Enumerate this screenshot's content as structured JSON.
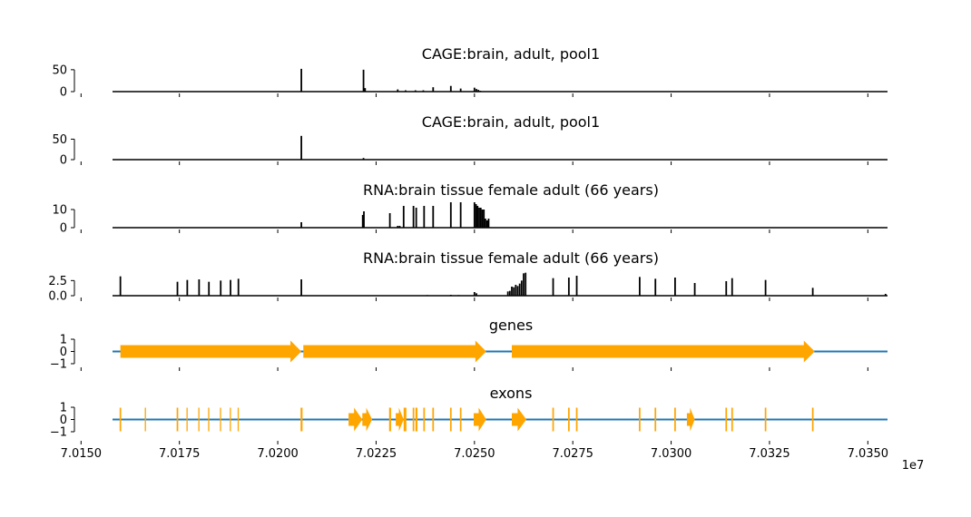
{
  "chart_data": {
    "type": "genome-tracks",
    "x_tick_labels": [
      "7.0150",
      "7.0175",
      "7.0200",
      "7.0225",
      "7.0250",
      "7.0275",
      "7.0300",
      "7.0325",
      "7.0350"
    ],
    "x_ticks": [
      70150000,
      70175000,
      70200000,
      70225000,
      70250000,
      70275000,
      70300000,
      70325000,
      70350000
    ],
    "x_offset_label": "1e7",
    "xlim": [
      70158000,
      70355000
    ],
    "tracks": [
      {
        "kind": "bar",
        "title": "CAGE:brain, adult, pool1",
        "ylim": [
          0,
          58
        ],
        "y_ticks": [
          0,
          50
        ],
        "y_tick_labels": [
          "0",
          "50"
        ],
        "peaks": [
          [
            70206000,
            52
          ],
          [
            70221800,
            50
          ],
          [
            70222200,
            8
          ],
          [
            70230500,
            5
          ],
          [
            70232500,
            3
          ],
          [
            70235000,
            3
          ],
          [
            70237000,
            3
          ],
          [
            70239500,
            10
          ],
          [
            70244000,
            13
          ],
          [
            70246500,
            7
          ],
          [
            70250000,
            9
          ],
          [
            70250500,
            6
          ],
          [
            70251000,
            4
          ],
          [
            70251500,
            2
          ]
        ]
      },
      {
        "kind": "bar",
        "title": "CAGE:brain, adult, pool1",
        "ylim": [
          0,
          62
        ],
        "y_ticks": [
          0,
          50
        ],
        "y_tick_labels": [
          "0",
          "50"
        ],
        "peaks": [
          [
            70206000,
            58
          ],
          [
            70221800,
            4
          ],
          [
            70193000,
            1
          ]
        ]
      },
      {
        "kind": "bar",
        "title": "RNA:brain tissue female adult (66 years)",
        "ylim": [
          0,
          14
        ],
        "y_ticks": [
          0,
          10
        ],
        "y_tick_labels": [
          "0",
          "10"
        ],
        "peaks": [
          [
            70206000,
            3
          ],
          [
            70221600,
            7
          ],
          [
            70221900,
            9
          ],
          [
            70228500,
            8
          ],
          [
            70230500,
            1
          ],
          [
            70231000,
            1
          ],
          [
            70232000,
            12
          ],
          [
            70234500,
            12
          ],
          [
            70235200,
            11
          ],
          [
            70237200,
            12
          ],
          [
            70239500,
            12
          ],
          [
            70244000,
            14
          ],
          [
            70246500,
            14
          ],
          [
            70250000,
            14
          ],
          [
            70250400,
            13
          ],
          [
            70250800,
            12
          ],
          [
            70251200,
            11
          ],
          [
            70251600,
            11
          ],
          [
            70252000,
            10
          ],
          [
            70252400,
            10
          ],
          [
            70252800,
            5
          ],
          [
            70253200,
            4
          ],
          [
            70253600,
            5
          ]
        ]
      },
      {
        "kind": "bar",
        "title": "RNA:brain tissue female adult (66 years)",
        "ylim": [
          0,
          4.2
        ],
        "y_ticks": [
          0,
          2.5
        ],
        "y_tick_labels": [
          "0.0",
          "2.5"
        ],
        "peaks": [
          [
            70160000,
            3.2
          ],
          [
            70174500,
            2.3
          ],
          [
            70177000,
            2.6
          ],
          [
            70180000,
            2.7
          ],
          [
            70182500,
            2.3
          ],
          [
            70185500,
            2.5
          ],
          [
            70188000,
            2.6
          ],
          [
            70190000,
            2.8
          ],
          [
            70206000,
            2.7
          ],
          [
            70238000,
            0.1
          ],
          [
            70244000,
            0.15
          ],
          [
            70246000,
            0.1
          ],
          [
            70250000,
            0.6
          ],
          [
            70250500,
            0.4
          ],
          [
            70258500,
            0.7
          ],
          [
            70259000,
            0.8
          ],
          [
            70259500,
            1.5
          ],
          [
            70260000,
            1.4
          ],
          [
            70260500,
            1.8
          ],
          [
            70261000,
            1.6
          ],
          [
            70261500,
            2.0
          ],
          [
            70262000,
            2.5
          ],
          [
            70262500,
            3.7
          ],
          [
            70263000,
            3.8
          ],
          [
            70270000,
            2.9
          ],
          [
            70274000,
            3.0
          ],
          [
            70276000,
            3.3
          ],
          [
            70292000,
            3.1
          ],
          [
            70296000,
            2.8
          ],
          [
            70301000,
            3.0
          ],
          [
            70306000,
            2.1
          ],
          [
            70314000,
            2.4
          ],
          [
            70315500,
            2.9
          ],
          [
            70324000,
            2.6
          ],
          [
            70336000,
            1.3
          ],
          [
            70354500,
            0.3
          ]
        ]
      },
      {
        "kind": "genes",
        "title": "genes",
        "ylim": [
          -1.15,
          1.15
        ],
        "y_ticks": [
          -1,
          0,
          1
        ],
        "y_tick_labels": [
          "−1",
          "0",
          "1"
        ],
        "genes": [
          [
            70160000,
            70206000
          ],
          [
            70206500,
            70253000
          ],
          [
            70259500,
            70336500
          ]
        ]
      },
      {
        "kind": "exons",
        "title": "exons",
        "ylim": [
          -1.15,
          1.15
        ],
        "y_ticks": [
          -1,
          0,
          1
        ],
        "y_tick_labels": [
          "−1",
          "0",
          "1"
        ],
        "exons": [
          [
            70159800,
            70160200
          ],
          [
            70166200,
            70166500
          ],
          [
            70174300,
            70174700
          ],
          [
            70176800,
            70177100
          ],
          [
            70179800,
            70180100
          ],
          [
            70182300,
            70182600
          ],
          [
            70185300,
            70185600
          ],
          [
            70187800,
            70188100
          ],
          [
            70189800,
            70190100
          ],
          [
            70205800,
            70206300
          ],
          [
            70218000,
            70221500
          ],
          [
            70221500,
            70224000
          ],
          [
            70228300,
            70228800
          ],
          [
            70230000,
            70232000
          ],
          [
            70232000,
            70232700
          ],
          [
            70234300,
            70234700
          ],
          [
            70235000,
            70235500
          ],
          [
            70237000,
            70237400
          ],
          [
            70239300,
            70239700
          ],
          [
            70243800,
            70244200
          ],
          [
            70246300,
            70246700
          ],
          [
            70249800,
            70253000
          ],
          [
            70259500,
            70263200
          ],
          [
            70269800,
            70270200
          ],
          [
            70273800,
            70274200
          ],
          [
            70275800,
            70276200
          ],
          [
            70291800,
            70292200
          ],
          [
            70295800,
            70296200
          ],
          [
            70300800,
            70301200
          ],
          [
            70304000,
            70306000
          ],
          [
            70313800,
            70314200
          ],
          [
            70315300,
            70315700
          ],
          [
            70323800,
            70324200
          ],
          [
            70335800,
            70336200
          ]
        ]
      }
    ]
  },
  "colors": {
    "bar": "#000000",
    "gene": "#ffa500",
    "line": "#1f77b4"
  }
}
